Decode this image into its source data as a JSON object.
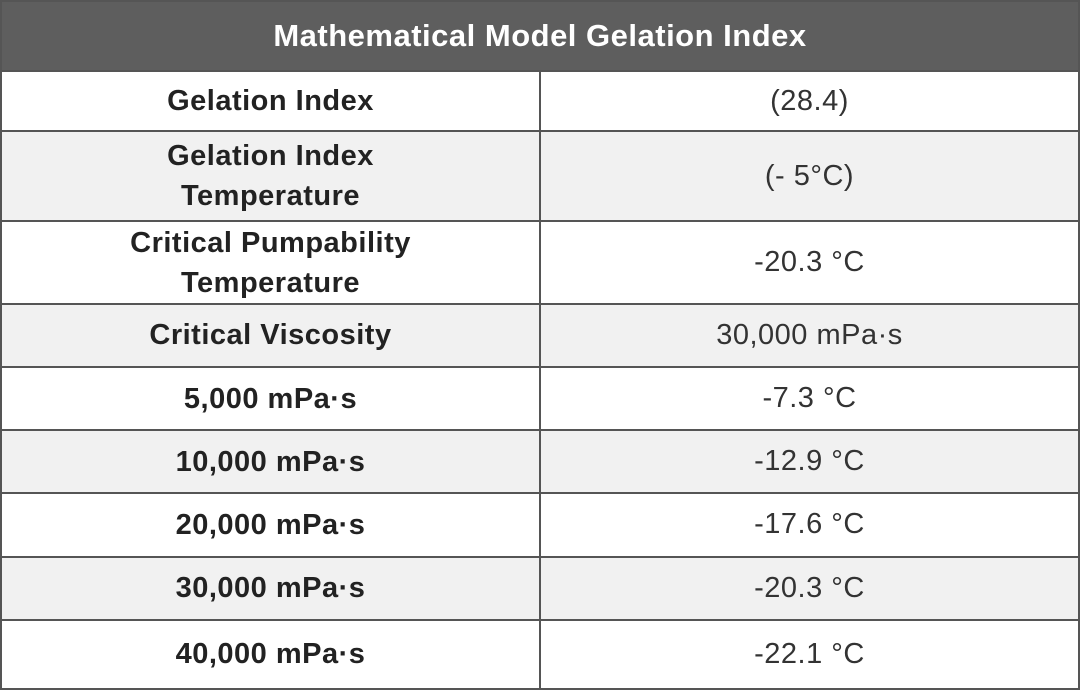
{
  "header": {
    "title": "Mathematical Model Gelation Index"
  },
  "table": {
    "rows": [
      [
        "Gelation Index",
        "(28.4)"
      ],
      [
        "Gelation Index Temperature",
        "(- 5°C)"
      ],
      [
        "Critical Pumpability Temperature",
        "-20.3 °C"
      ],
      [
        "Critical Viscosity",
        "30,000 mPa·s"
      ],
      [
        "5,000 mPa·s",
        "-7.3 °C"
      ],
      [
        "10,000 mPa·s",
        "-12.9 °C"
      ],
      [
        "20,000 mPa·s",
        "-17.6 °C"
      ],
      [
        "30,000 mPa·s",
        "-20.3 °C"
      ],
      [
        "40,000 mPa·s",
        "-22.1 °C"
      ]
    ]
  }
}
